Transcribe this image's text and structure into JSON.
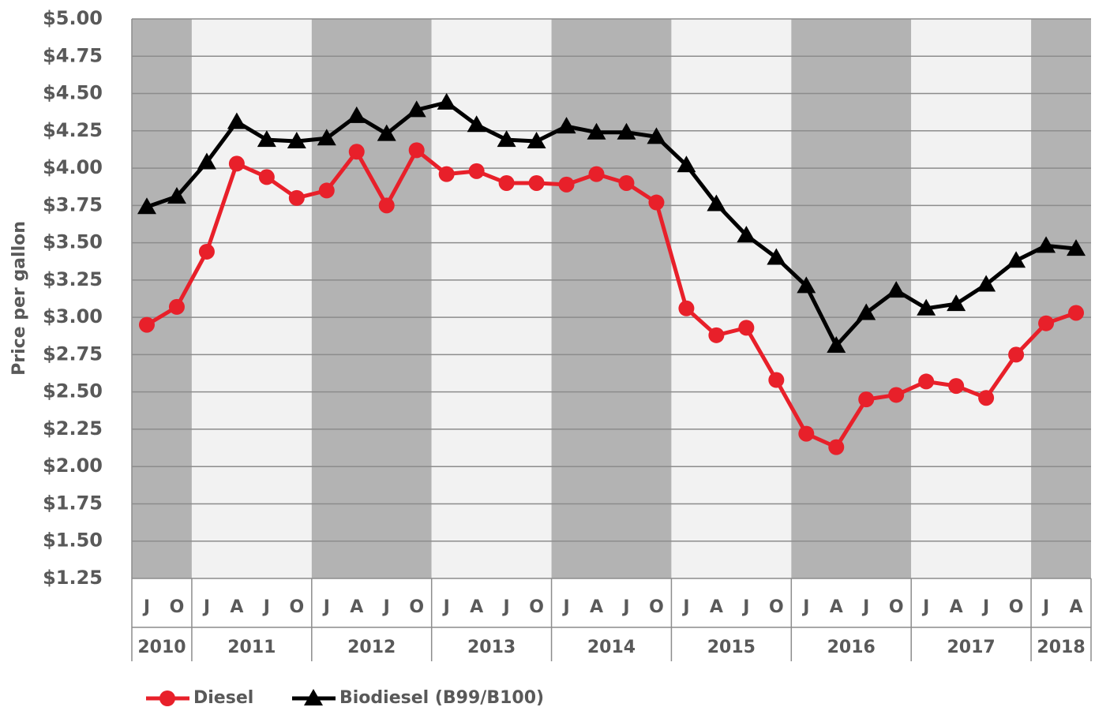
{
  "chart_data": {
    "type": "line",
    "y_label": "Price per gallon",
    "groups": [
      {
        "label": "2010",
        "categories": [
          "J",
          "O"
        ]
      },
      {
        "label": "2011",
        "categories": [
          "J",
          "A",
          "J",
          "O"
        ]
      },
      {
        "label": "2012",
        "categories": [
          "J",
          "A",
          "J",
          "O"
        ]
      },
      {
        "label": "2013",
        "categories": [
          "J",
          "A",
          "J",
          "O"
        ]
      },
      {
        "label": "2014",
        "categories": [
          "J",
          "A",
          "J",
          "O"
        ]
      },
      {
        "label": "2015",
        "categories": [
          "J",
          "A",
          "J",
          "O"
        ]
      },
      {
        "label": "2016",
        "categories": [
          "J",
          "A",
          "J",
          "O"
        ]
      },
      {
        "label": "2017",
        "categories": [
          "J",
          "A",
          "J",
          "O"
        ]
      },
      {
        "label": "2018",
        "categories": [
          "J",
          "A"
        ]
      }
    ],
    "series": [
      {
        "name": "Diesel",
        "color": "#e8202a",
        "marker": "circle",
        "values": [
          2.95,
          3.07,
          3.44,
          4.03,
          3.94,
          3.8,
          3.85,
          4.11,
          3.75,
          4.12,
          3.96,
          3.98,
          3.9,
          3.9,
          3.89,
          3.96,
          3.9,
          3.77,
          3.06,
          2.88,
          2.93,
          2.58,
          2.22,
          2.13,
          2.45,
          2.48,
          2.57,
          2.54,
          2.46,
          2.75,
          2.96,
          3.03
        ]
      },
      {
        "name": "Biodiesel (B99/B100)",
        "color": "#000000",
        "marker": "triangle",
        "values": [
          3.74,
          3.81,
          4.04,
          4.31,
          4.19,
          4.18,
          4.2,
          4.35,
          4.23,
          4.39,
          4.44,
          4.29,
          4.19,
          4.18,
          4.28,
          4.24,
          4.24,
          4.21,
          4.02,
          3.76,
          3.55,
          3.4,
          3.21,
          2.81,
          3.03,
          3.18,
          3.06,
          3.09,
          3.22,
          3.38,
          3.48,
          3.46
        ]
      }
    ],
    "ylim": [
      1.25,
      5
    ],
    "yticks": [
      {
        "value": 1.25,
        "label": "$1.25"
      },
      {
        "value": 1.5,
        "label": "$1.50"
      },
      {
        "value": 1.75,
        "label": "$1.75"
      },
      {
        "value": 2,
        "label": "$2.00"
      },
      {
        "value": 2.25,
        "label": "$2.25"
      },
      {
        "value": 2.5,
        "label": "$2.50"
      },
      {
        "value": 2.75,
        "label": "$2.75"
      },
      {
        "value": 3,
        "label": "$3.00"
      },
      {
        "value": 3.25,
        "label": "$3.25"
      },
      {
        "value": 3.5,
        "label": "$3.50"
      },
      {
        "value": 3.75,
        "label": "$3.75"
      },
      {
        "value": 4,
        "label": "$4.00"
      },
      {
        "value": 4.25,
        "label": "$4.25"
      },
      {
        "value": 4.5,
        "label": "$4.50"
      },
      {
        "value": 4.75,
        "label": "$4.75"
      },
      {
        "value": 5,
        "label": "$5.00"
      }
    ],
    "grid": true,
    "band_colors": [
      "#b3b3b3",
      "#f2f2f2"
    ],
    "legend": "bottom-left"
  }
}
